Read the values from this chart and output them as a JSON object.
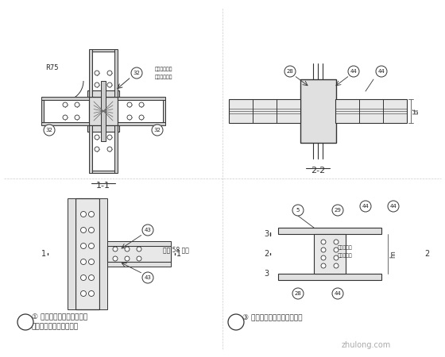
{
  "bg_color": "#ffffff",
  "line_color": "#333333",
  "dim_color": "#555555",
  "text_color": "#222222",
  "title1": "1-1",
  "title2": "2-2",
  "label1": "① 在钉形混凝土结构中展与",
  "label1b": "十字形截面柱的刚性连接",
  "label2": "③ 箋形梁与筋形柱的刚性连接",
  "note_r75": "R75",
  "watermark": "zhulong.com"
}
